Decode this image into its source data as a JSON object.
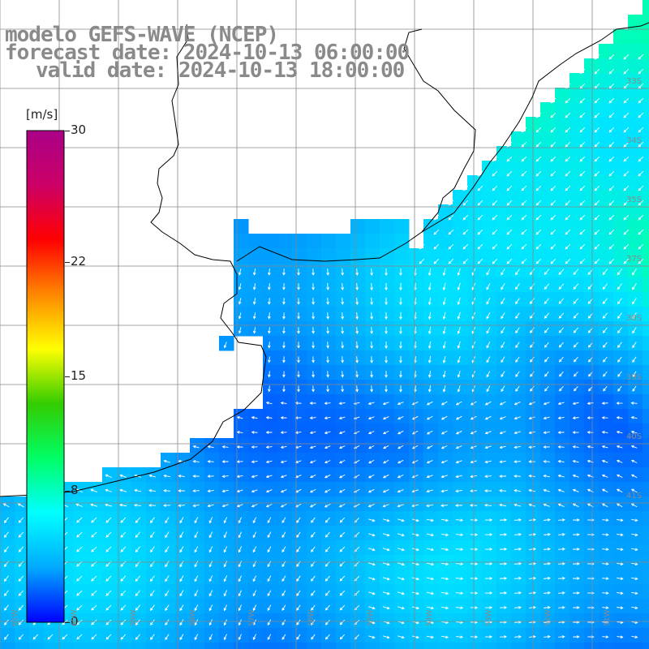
{
  "title": {
    "model": "modelo GEFS-WAVE (NCEP)",
    "forecast": "forecast date: 2024-10-13 06:00:00",
    "valid": "valid date: 2024-10-13 18:00:00"
  },
  "colorbar": {
    "unit": "[m/s]",
    "min": 0,
    "max": 30,
    "ticks": [
      "30",
      "22",
      "15",
      "8",
      "0"
    ],
    "tick_values": [
      30,
      22,
      15,
      8,
      0
    ],
    "colors": [
      "#0000ff",
      "#00aaff",
      "#00ffff",
      "#00ff66",
      "#33cc00",
      "#ffff00",
      "#ff8800",
      "#ff0000",
      "#cc0066",
      "#aa0088"
    ]
  },
  "map": {
    "variable": "wind speed",
    "land_color": "#ffffff",
    "grid_color": "#888888",
    "lat_labels": [
      "33S",
      "34S",
      "35S",
      "37S",
      "38S",
      "39S",
      "40S",
      "41S"
    ],
    "lon_labels": [
      "61W",
      "60W",
      "59W",
      "58W",
      "57W",
      "56W",
      "55W",
      "54W",
      "53W",
      "52W",
      "51W"
    ]
  }
}
